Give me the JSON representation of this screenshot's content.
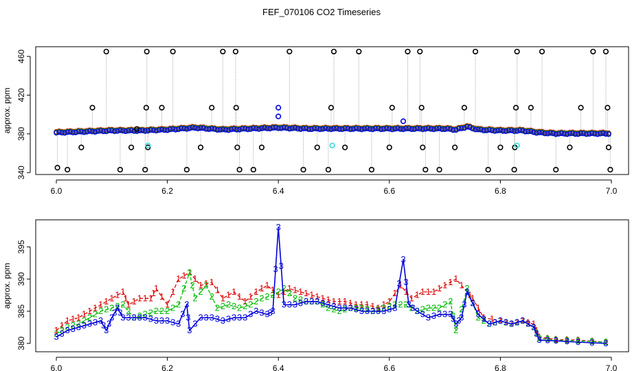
{
  "title": "FEF_070106  CO2 Timeseries",
  "colors": {
    "black": "#000000",
    "red": "#dd0000",
    "green": "#00bb00",
    "blue": "#0000dd",
    "cyan": "#33dddd",
    "grey": "#999999"
  },
  "chart_data": [
    {
      "type": "scatter",
      "name": "overview",
      "ylabel": "approx. ppm",
      "xlabel": "",
      "xlim": [
        6.0,
        7.0
      ],
      "ylim": [
        338,
        470
      ],
      "xticks": [
        6.0,
        6.2,
        6.4,
        6.6,
        6.8,
        7.0
      ],
      "xtick_labels": [
        "6.0",
        "6.2",
        "6.4",
        "6.6",
        "6.8",
        "7.0"
      ],
      "yticks": [
        340,
        380,
        420,
        460
      ],
      "ytick_labels": [
        "340",
        "380",
        "420",
        "460"
      ],
      "band": [
        [
          6.0,
          381
        ],
        [
          6.05,
          382
        ],
        [
          6.1,
          383
        ],
        [
          6.15,
          383
        ],
        [
          6.2,
          384
        ],
        [
          6.25,
          386
        ],
        [
          6.3,
          384
        ],
        [
          6.35,
          385
        ],
        [
          6.4,
          386
        ],
        [
          6.45,
          385
        ],
        [
          6.5,
          385
        ],
        [
          6.55,
          385
        ],
        [
          6.6,
          385
        ],
        [
          6.65,
          385
        ],
        [
          6.7,
          385
        ],
        [
          6.72,
          384
        ],
        [
          6.74,
          387
        ],
        [
          6.76,
          384
        ],
        [
          6.8,
          383
        ],
        [
          6.84,
          383
        ],
        [
          6.87,
          381
        ],
        [
          6.9,
          380
        ],
        [
          6.95,
          380
        ],
        [
          6.99,
          380
        ]
      ],
      "outliers_black": [
        [
          6.002,
          345
        ],
        [
          6.02,
          343
        ],
        [
          6.045,
          366
        ],
        [
          6.065,
          407
        ],
        [
          6.09,
          465
        ],
        [
          6.115,
          343
        ],
        [
          6.135,
          366
        ],
        [
          6.145,
          385
        ],
        [
          6.16,
          343
        ],
        [
          6.162,
          407
        ],
        [
          6.163,
          465
        ],
        [
          6.165,
          366
        ],
        [
          6.19,
          407
        ],
        [
          6.21,
          465
        ],
        [
          6.235,
          343
        ],
        [
          6.26,
          366
        ],
        [
          6.28,
          407
        ],
        [
          6.3,
          465
        ],
        [
          6.323,
          465
        ],
        [
          6.324,
          407
        ],
        [
          6.326,
          366
        ],
        [
          6.33,
          343
        ],
        [
          6.355,
          343
        ],
        [
          6.37,
          366
        ],
        [
          6.42,
          465
        ],
        [
          6.445,
          343
        ],
        [
          6.47,
          366
        ],
        [
          6.49,
          343
        ],
        [
          6.495,
          407
        ],
        [
          6.5,
          465
        ],
        [
          6.52,
          366
        ],
        [
          6.545,
          465
        ],
        [
          6.568,
          343
        ],
        [
          6.6,
          366
        ],
        [
          6.605,
          407
        ],
        [
          6.633,
          465
        ],
        [
          6.655,
          465
        ],
        [
          6.658,
          407
        ],
        [
          6.66,
          366
        ],
        [
          6.665,
          343
        ],
        [
          6.69,
          343
        ],
        [
          6.718,
          366
        ],
        [
          6.735,
          407
        ],
        [
          6.755,
          465
        ],
        [
          6.778,
          343
        ],
        [
          6.8,
          366
        ],
        [
          6.825,
          343
        ],
        [
          6.826,
          366
        ],
        [
          6.828,
          407
        ],
        [
          6.83,
          465
        ],
        [
          6.855,
          407
        ],
        [
          6.875,
          465
        ],
        [
          6.9,
          343
        ],
        [
          6.925,
          366
        ],
        [
          6.945,
          407
        ],
        [
          6.967,
          465
        ],
        [
          6.99,
          465
        ],
        [
          6.993,
          407
        ],
        [
          6.995,
          366
        ],
        [
          6.998,
          343
        ]
      ],
      "outliers_cyan": [
        [
          6.165,
          368
        ],
        [
          6.497,
          368
        ],
        [
          6.83,
          368
        ]
      ],
      "outliers_blue": [
        [
          6.4,
          398
        ],
        [
          6.625,
          393
        ]
      ],
      "outliers_blue_high": [
        [
          6.4,
          407
        ]
      ]
    },
    {
      "type": "line",
      "name": "detail",
      "ylabel": "approx. ppm",
      "xlabel": "",
      "xlim": [
        6.0,
        7.0
      ],
      "ylim": [
        378.7,
        399.2
      ],
      "xticks": [
        6.0,
        6.2,
        6.4,
        6.6,
        6.8,
        7.0
      ],
      "xtick_labels": [
        "6.0",
        "6.2",
        "6.4",
        "6.6",
        "6.8",
        "7.0"
      ],
      "yticks": [
        380,
        385,
        390,
        395
      ],
      "ytick_labels": [
        "380",
        "385",
        "390",
        "395"
      ],
      "series": [
        {
          "name": "1",
          "color": "#dd0000",
          "mark": "1",
          "points": [
            [
              6.0,
              382
            ],
            [
              6.02,
              383.5
            ],
            [
              6.04,
              384
            ],
            [
              6.06,
              385
            ],
            [
              6.08,
              386
            ],
            [
              6.1,
              387
            ],
            [
              6.12,
              388
            ],
            [
              6.13,
              386
            ],
            [
              6.15,
              387
            ],
            [
              6.17,
              387
            ],
            [
              6.18,
              388.5
            ],
            [
              6.2,
              386
            ],
            [
              6.22,
              390
            ],
            [
              6.24,
              391
            ],
            [
              6.26,
              389
            ],
            [
              6.28,
              389.5
            ],
            [
              6.3,
              387
            ],
            [
              6.32,
              388
            ],
            [
              6.34,
              386.5
            ],
            [
              6.36,
              388
            ],
            [
              6.38,
              389
            ],
            [
              6.4,
              387.5
            ],
            [
              6.42,
              388.5
            ],
            [
              6.44,
              388
            ],
            [
              6.46,
              387.5
            ],
            [
              6.48,
              387
            ],
            [
              6.5,
              386.5
            ],
            [
              6.52,
              386.5
            ],
            [
              6.54,
              386
            ],
            [
              6.56,
              386
            ],
            [
              6.58,
              385.5
            ],
            [
              6.6,
              386.5
            ],
            [
              6.62,
              389
            ],
            [
              6.64,
              387
            ],
            [
              6.66,
              388
            ],
            [
              6.68,
              388
            ],
            [
              6.7,
              389
            ],
            [
              6.72,
              390
            ],
            [
              6.74,
              388
            ],
            [
              6.75,
              387
            ],
            [
              6.77,
              384
            ],
            [
              6.8,
              383.5
            ],
            [
              6.82,
              383
            ],
            [
              6.84,
              383.5
            ],
            [
              6.86,
              383
            ],
            [
              6.87,
              381
            ],
            [
              6.9,
              380.6
            ],
            [
              6.94,
              380.5
            ],
            [
              6.99,
              380.2
            ]
          ]
        },
        {
          "name": "2",
          "color": "#00bb00",
          "mark": "2",
          "points": [
            [
              6.0,
              381.5
            ],
            [
              6.02,
              382.5
            ],
            [
              6.04,
              383
            ],
            [
              6.06,
              384
            ],
            [
              6.08,
              385
            ],
            [
              6.1,
              385.5
            ],
            [
              6.12,
              386
            ],
            [
              6.14,
              384
            ],
            [
              6.16,
              384.5
            ],
            [
              6.18,
              385
            ],
            [
              6.2,
              385
            ],
            [
              6.22,
              386
            ],
            [
              6.24,
              391
            ],
            [
              6.25,
              387
            ],
            [
              6.27,
              389
            ],
            [
              6.29,
              385.5
            ],
            [
              6.31,
              386
            ],
            [
              6.33,
              385.5
            ],
            [
              6.35,
              386
            ],
            [
              6.37,
              387
            ],
            [
              6.39,
              387.5
            ],
            [
              6.41,
              388.5
            ],
            [
              6.43,
              387
            ],
            [
              6.45,
              386.5
            ],
            [
              6.47,
              386.5
            ],
            [
              6.49,
              385.5
            ],
            [
              6.51,
              385
            ],
            [
              6.53,
              385.5
            ],
            [
              6.55,
              385.5
            ],
            [
              6.57,
              385
            ],
            [
              6.59,
              385.5
            ],
            [
              6.61,
              386
            ],
            [
              6.63,
              386
            ],
            [
              6.65,
              385
            ],
            [
              6.67,
              385.5
            ],
            [
              6.69,
              385.5
            ],
            [
              6.71,
              386.5
            ],
            [
              6.72,
              382
            ],
            [
              6.74,
              388.5
            ],
            [
              6.76,
              384
            ],
            [
              6.78,
              383
            ],
            [
              6.8,
              383.5
            ],
            [
              6.82,
              383
            ],
            [
              6.84,
              383.5
            ],
            [
              6.86,
              382.5
            ],
            [
              6.87,
              380.8
            ],
            [
              6.9,
              380.5
            ],
            [
              6.94,
              380.4
            ],
            [
              6.99,
              380.2
            ]
          ]
        },
        {
          "name": "3",
          "color": "#0000dd",
          "mark": "3",
          "points": [
            [
              6.0,
              381
            ],
            [
              6.02,
              382
            ],
            [
              6.04,
              382.5
            ],
            [
              6.06,
              383
            ],
            [
              6.08,
              383.5
            ],
            [
              6.09,
              382
            ],
            [
              6.1,
              384
            ],
            [
              6.11,
              385.5
            ],
            [
              6.12,
              384
            ],
            [
              6.14,
              384
            ],
            [
              6.16,
              384
            ],
            [
              6.18,
              383.5
            ],
            [
              6.2,
              383.5
            ],
            [
              6.22,
              383
            ],
            [
              6.235,
              386
            ],
            [
              6.24,
              382
            ],
            [
              6.26,
              384
            ],
            [
              6.28,
              384
            ],
            [
              6.3,
              383.5
            ],
            [
              6.32,
              384
            ],
            [
              6.34,
              384
            ],
            [
              6.36,
              385
            ],
            [
              6.38,
              384.5
            ],
            [
              6.39,
              385
            ],
            [
              6.4,
              398
            ],
            [
              6.41,
              386
            ],
            [
              6.43,
              386
            ],
            [
              6.45,
              386.5
            ],
            [
              6.47,
              386.5
            ],
            [
              6.49,
              386
            ],
            [
              6.51,
              385.5
            ],
            [
              6.53,
              385.5
            ],
            [
              6.55,
              385
            ],
            [
              6.57,
              385
            ],
            [
              6.59,
              385
            ],
            [
              6.61,
              385.5
            ],
            [
              6.625,
              393
            ],
            [
              6.635,
              386
            ],
            [
              6.65,
              385
            ],
            [
              6.67,
              384
            ],
            [
              6.69,
              384.5
            ],
            [
              6.71,
              384.5
            ],
            [
              6.72,
              383
            ],
            [
              6.73,
              384
            ],
            [
              6.74,
              388
            ],
            [
              6.76,
              384.5
            ],
            [
              6.78,
              383
            ],
            [
              6.8,
              383.5
            ],
            [
              6.82,
              383
            ],
            [
              6.84,
              383.5
            ],
            [
              6.86,
              382.5
            ],
            [
              6.87,
              380.5
            ],
            [
              6.9,
              380.4
            ],
            [
              6.94,
              380.2
            ],
            [
              6.99,
              380
            ]
          ]
        }
      ]
    }
  ]
}
